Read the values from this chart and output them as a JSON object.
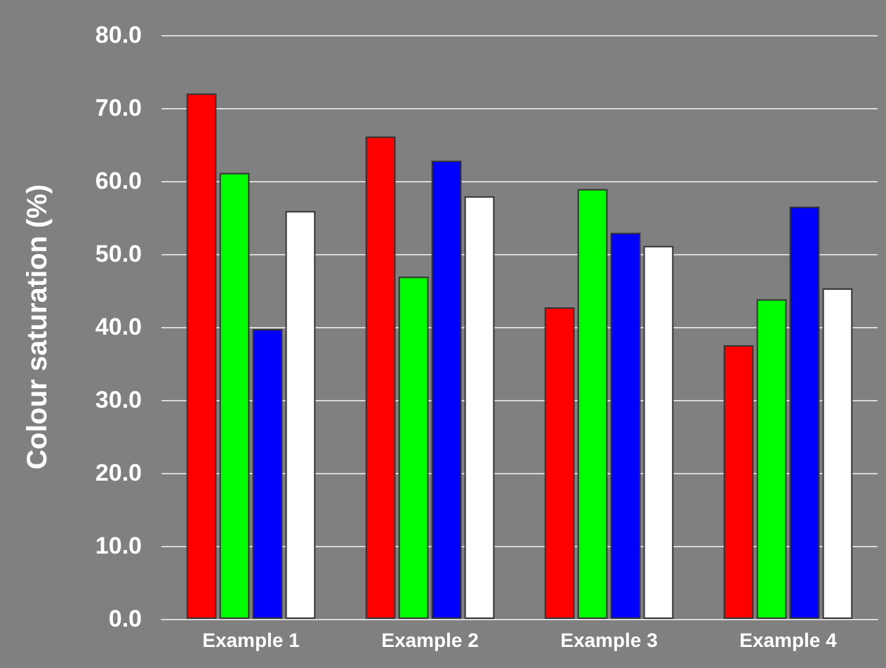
{
  "chart_data": {
    "type": "bar",
    "ylabel": "Colour saturation (%)",
    "categories": [
      "Example 1",
      "Example 2",
      "Example 3",
      "Example 4"
    ],
    "series": [
      {
        "color": "#ff0000",
        "values": [
          72.0,
          66.1,
          42.7,
          37.5
        ]
      },
      {
        "color": "#00ff00",
        "values": [
          61.1,
          46.9,
          58.9,
          43.8
        ]
      },
      {
        "color": "#0000ff",
        "values": [
          39.7,
          62.8,
          52.9,
          56.5
        ]
      },
      {
        "color": "#ffffff",
        "values": [
          55.9,
          57.9,
          51.1,
          45.3
        ]
      }
    ],
    "ylim": [
      0,
      80
    ],
    "yticks": [
      {
        "value": 0,
        "label": "0.0"
      },
      {
        "value": 10,
        "label": "10.0"
      },
      {
        "value": 20,
        "label": "20.0"
      },
      {
        "value": 30,
        "label": "30.0"
      },
      {
        "value": 40,
        "label": "40.0"
      },
      {
        "value": 50,
        "label": "50.0"
      },
      {
        "value": 60,
        "label": "60.0"
      },
      {
        "value": 70,
        "label": "70.0"
      },
      {
        "value": 80,
        "label": "80.0"
      }
    ],
    "grid": "y"
  }
}
